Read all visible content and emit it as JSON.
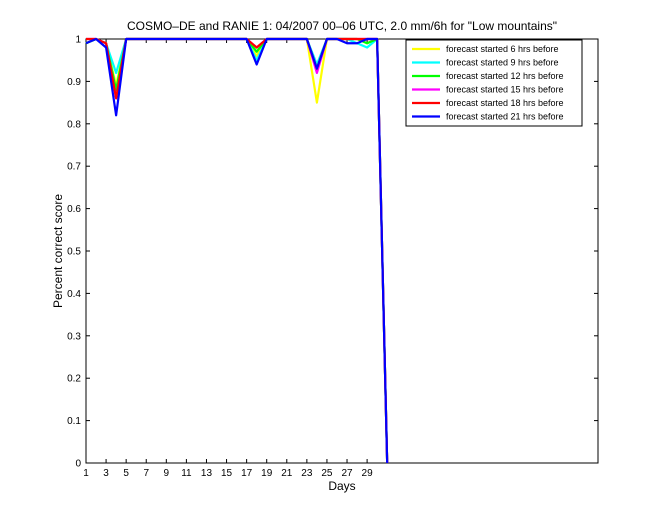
{
  "chart_data": {
    "type": "line",
    "title": "COSMO–DE and RANIE 1: 04/2007 00–06 UTC, 2.0 mm/6h for \"Low mountains\"",
    "xlabel": "Days",
    "ylabel": "Percent correct score",
    "xlim": [
      1,
      52
    ],
    "ylim": [
      0,
      1
    ],
    "xticks": [
      1,
      3,
      5,
      7,
      9,
      11,
      13,
      15,
      17,
      19,
      21,
      23,
      25,
      27,
      29
    ],
    "yticks": [
      0,
      0.1,
      0.2,
      0.3,
      0.4,
      0.5,
      0.6,
      0.7,
      0.8,
      0.9,
      1
    ],
    "ytick_labels": [
      "0",
      "0.1",
      "0.2",
      "0.3",
      "0.4",
      "0.5",
      "0.6",
      "0.7",
      "0.8",
      "0.9",
      "1"
    ],
    "grid": false,
    "legend_position": "top-right",
    "x": [
      1,
      2,
      3,
      4,
      5,
      6,
      7,
      8,
      9,
      10,
      11,
      12,
      13,
      14,
      15,
      16,
      17,
      18,
      19,
      20,
      21,
      22,
      23,
      24,
      25,
      26,
      27,
      28,
      29,
      30,
      31
    ],
    "series": [
      {
        "name": "forecast started 6 hrs before",
        "color": "#ffff00",
        "values": [
          0.99,
          1,
          0.99,
          0.89,
          1,
          1,
          1,
          1,
          1,
          1,
          1,
          1,
          1,
          1,
          1,
          1,
          1,
          0.96,
          1,
          1,
          1,
          1,
          1,
          0.85,
          1,
          1,
          1,
          1,
          0.99,
          1,
          0
        ]
      },
      {
        "name": "forecast started 9 hrs before",
        "color": "#00ffff",
        "values": [
          0.99,
          1,
          0.99,
          0.92,
          1,
          1,
          1,
          1,
          1,
          1,
          1,
          1,
          1,
          1,
          1,
          1,
          1,
          0.95,
          1,
          1,
          1,
          1,
          1,
          0.94,
          1,
          1,
          1,
          0.99,
          0.98,
          1,
          0
        ]
      },
      {
        "name": "forecast started 12 hrs before",
        "color": "#00ff00",
        "values": [
          0.99,
          1,
          0.99,
          0.88,
          1,
          1,
          1,
          1,
          1,
          1,
          1,
          1,
          1,
          1,
          1,
          1,
          1,
          0.97,
          1,
          1,
          1,
          1,
          1,
          0.93,
          1,
          1,
          1,
          1,
          0.99,
          1,
          0
        ]
      },
      {
        "name": "forecast started 15 hrs before",
        "color": "#ff00ff",
        "values": [
          1,
          1,
          0.99,
          0.86,
          1,
          1,
          1,
          1,
          1,
          1,
          1,
          1,
          1,
          1,
          1,
          1,
          1,
          0.98,
          1,
          1,
          1,
          1,
          1,
          0.92,
          1,
          1,
          1,
          1,
          1,
          1,
          0
        ]
      },
      {
        "name": "forecast started 18 hrs before",
        "color": "#ff0000",
        "values": [
          1,
          1,
          0.99,
          0.86,
          1,
          1,
          1,
          1,
          1,
          1,
          1,
          1,
          1,
          1,
          1,
          1,
          1,
          0.98,
          1,
          1,
          1,
          1,
          1,
          0.93,
          1,
          1,
          1,
          1,
          1,
          1,
          0
        ]
      },
      {
        "name": "forecast started 21 hrs before",
        "color": "#0000ff",
        "values": [
          0.99,
          1,
          0.98,
          0.82,
          1,
          1,
          1,
          1,
          1,
          1,
          1,
          1,
          1,
          1,
          1,
          1,
          1,
          0.94,
          1,
          1,
          1,
          1,
          1,
          0.93,
          1,
          1,
          0.99,
          0.99,
          1,
          1,
          0
        ]
      }
    ]
  }
}
